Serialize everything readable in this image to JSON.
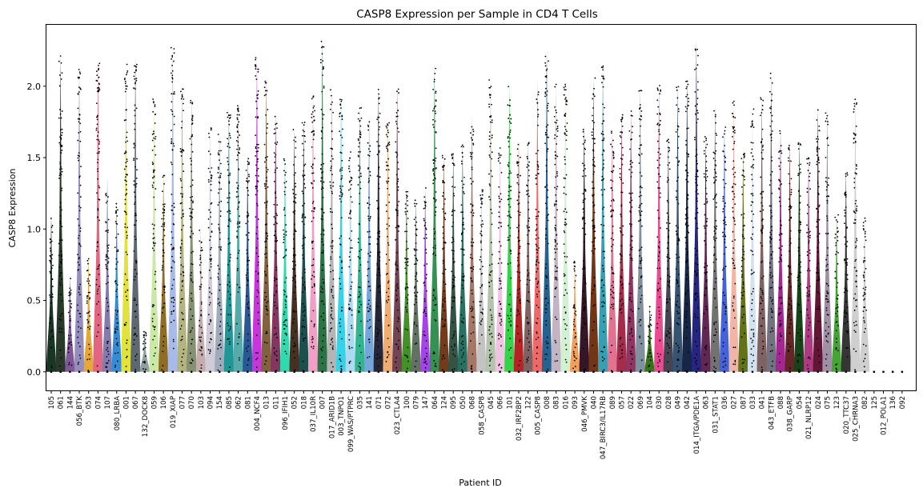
{
  "chart_data": {
    "type": "violin",
    "title": "CASP8 Expression per Sample in CD4 T Cells",
    "xlabel": "Patient ID",
    "ylabel": "CASP8 Expression",
    "ylim": [
      -0.13,
      2.43
    ],
    "yticks": [
      "0.0",
      "0.5",
      "1.0",
      "1.5",
      "2.0"
    ],
    "ytick_values": [
      0.0,
      0.5,
      1.0,
      1.5,
      2.0
    ],
    "categories": [
      "105",
      "061",
      "144",
      "056_BTK",
      "053",
      "074",
      "107",
      "080_LRBA",
      "001",
      "067",
      "132_DOCK8",
      "059",
      "106",
      "019_XIAP",
      "077",
      "070",
      "103",
      "094",
      "154",
      "085",
      "062",
      "081",
      "004_NCF4",
      "013",
      "011",
      "096_IFIH1",
      "052",
      "018",
      "037_IL10R",
      "007",
      "017_ARID1B",
      "003_TNPO1",
      "099_WAS/PTPRC",
      "035",
      "141",
      "071",
      "072",
      "023_CTLA4",
      "100",
      "079",
      "147",
      "064",
      "124",
      "095",
      "050",
      "068",
      "058_CASP8",
      "045",
      "066",
      "101",
      "032_IRF2BP2",
      "122",
      "005_CASP8",
      "008",
      "083",
      "016",
      "093",
      "046_PMVK",
      "040",
      "047_BIRC3/IL17RB",
      "089",
      "057",
      "022",
      "069",
      "104",
      "030",
      "028",
      "049",
      "042",
      "014_ITGA/PDE1A",
      "063",
      "031_STAT1",
      "036",
      "027",
      "087",
      "033",
      "041",
      "043_ETFB",
      "088",
      "038_GARP",
      "054",
      "021_NLRP12",
      "024",
      "075",
      "123",
      "020_TTC37",
      "025_CHRNA3",
      "082",
      "125",
      "012_POLA1",
      "136",
      "092"
    ],
    "max_values": [
      1.1,
      2.22,
      0.67,
      2.13,
      0.82,
      2.18,
      1.37,
      1.2,
      2.16,
      2.21,
      0.3,
      1.91,
      1.38,
      2.3,
      2.03,
      1.92,
      1.0,
      1.73,
      1.68,
      1.85,
      1.87,
      1.52,
      2.2,
      2.07,
      1.82,
      1.52,
      1.7,
      1.75,
      1.98,
      2.32,
      2.02,
      1.92,
      1.55,
      1.85,
      1.8,
      1.98,
      1.8,
      2.0,
      1.3,
      1.22,
      1.3,
      2.16,
      1.52,
      1.55,
      1.6,
      1.8,
      1.3,
      2.06,
      1.58,
      2.02,
      1.62,
      1.62,
      2.05,
      2.26,
      2.02,
      2.05,
      0.78,
      1.73,
      2.06,
      2.15,
      1.7,
      1.8,
      1.83,
      2.0,
      0.46,
      2.01,
      1.65,
      2.01,
      2.05,
      2.32,
      1.65,
      1.88,
      1.72,
      1.92,
      1.55,
      1.84,
      1.92,
      2.1,
      1.7,
      1.62,
      1.64,
      1.5,
      1.85,
      1.85,
      1.1,
      1.42,
      1.93,
      1.1,
      0.0,
      0.0,
      0.0,
      0.0
    ],
    "colors": [
      "#0d2a17",
      "#1e2e1e",
      "#7a4f91",
      "#8f88b8",
      "#e3a32b",
      "#e05d7a",
      "#7c74a8",
      "#2a86d4",
      "#dfe030",
      "#556068",
      "#8a9a9a",
      "#c6e8a0",
      "#8a6518",
      "#a3b6e8",
      "#b0b07a",
      "#7d8c6a",
      "#c2a8ab",
      "#cfc8d6",
      "#9aa6b8",
      "#159090",
      "#4ea5a5",
      "#1f4f8f",
      "#c42bd8",
      "#7a5a35",
      "#7d2a57",
      "#26d8a8",
      "#3a2618",
      "#124646",
      "#f09ac2",
      "#1e6b3a",
      "#b0b0b0",
      "#2ad0e8",
      "#a8d8f0",
      "#28b08a",
      "#6fa0d8",
      "#1a1a2e",
      "#f0a86a",
      "#6a3a4a",
      "#3a8a1e",
      "#5a6a5a",
      "#a23ae8",
      "#2a8a4a",
      "#6a3010",
      "#2a4a3a",
      "#1a6a5a",
      "#a07060",
      "#c0c0c0",
      "#b0c0a8",
      "#f0c0e0",
      "#2ad040",
      "#b01818",
      "#7a5a5a",
      "#f06060",
      "#1a5a8a",
      "#c0b0c0",
      "#d0f0d0",
      "#f09a50",
      "#2a0a1a",
      "#6a2a0a",
      "#2a9ab0",
      "#e06a8a",
      "#a02040",
      "#8a2a5a",
      "#7a8a9a",
      "#2e6b0c",
      "#e8408a",
      "#3a3a4a",
      "#2a4a6a",
      "#0a1a3a",
      "#1a1a7a",
      "#5a1a4a",
      "#6a6a6a",
      "#3a5ad8",
      "#f0b0a0",
      "#5a6a0a",
      "#d0e0f0",
      "#7a5a5a",
      "#6a6a7a",
      "#a01a8a",
      "#5a1a1a",
      "#0a3a0a",
      "#a8307a",
      "#5a0a2a",
      "#9a8aa0",
      "#3aa02a",
      "#2a2a2a",
      "#cccccc",
      "#cccccc",
      "#cccccc",
      "#cccccc"
    ]
  }
}
